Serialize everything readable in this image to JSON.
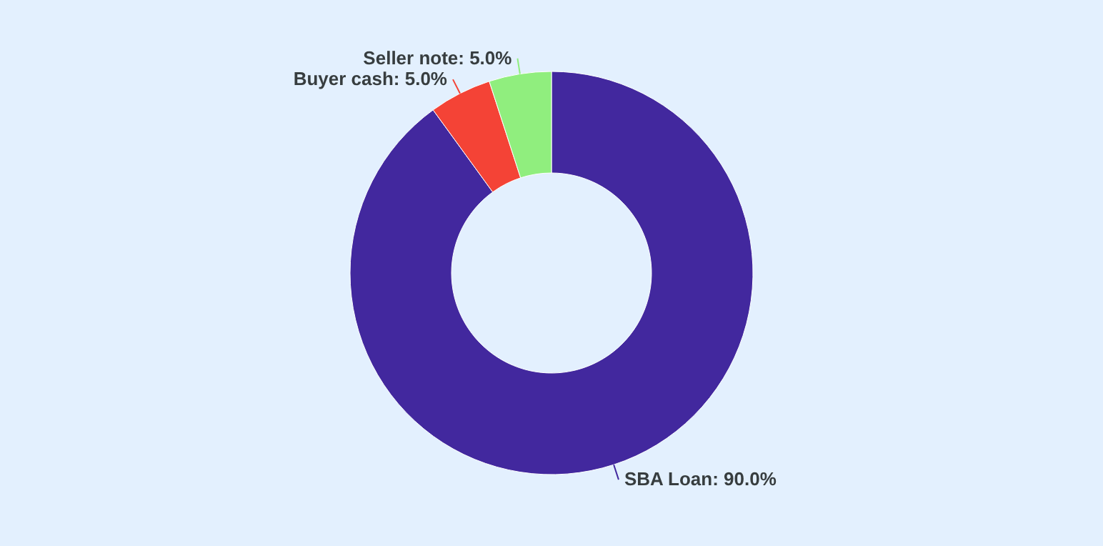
{
  "chart_data": {
    "type": "donut",
    "categories": [
      "SBA Loan",
      "Buyer cash",
      "Seller note"
    ],
    "values": [
      90,
      5,
      5
    ],
    "colors": [
      "#42289e",
      "#f44336",
      "#90ee7e"
    ],
    "value_labels": [
      "90.0%",
      "5.0%",
      "5.0%"
    ]
  }
}
